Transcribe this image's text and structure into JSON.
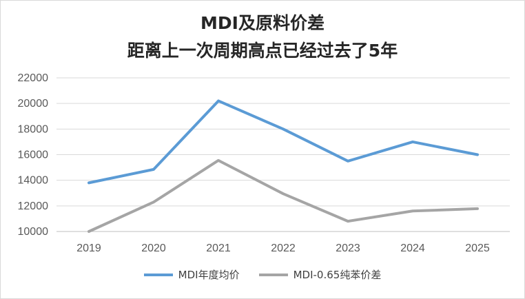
{
  "chart_data": {
    "type": "line",
    "title": [
      "MDI及原料价差",
      "距离上一次周期高点已经过去了5年"
    ],
    "categories": [
      "2019",
      "2020",
      "2021",
      "2022",
      "2023",
      "2024",
      "2025"
    ],
    "series": [
      {
        "name": "MDI年度均价",
        "color": "#5b9bd5",
        "values": [
          13800,
          14850,
          20200,
          18000,
          15500,
          17000,
          16000
        ]
      },
      {
        "name": "MDI-0.65纯苯价差",
        "color": "#a5a5a5",
        "values": [
          10000,
          12300,
          15550,
          12950,
          10800,
          11600,
          11780
        ]
      }
    ],
    "ylim": [
      10000,
      22000
    ],
    "yticks": [
      "10000",
      "12000",
      "14000",
      "16000",
      "18000",
      "20000",
      "22000"
    ],
    "grid": true,
    "legend": "bottom"
  }
}
